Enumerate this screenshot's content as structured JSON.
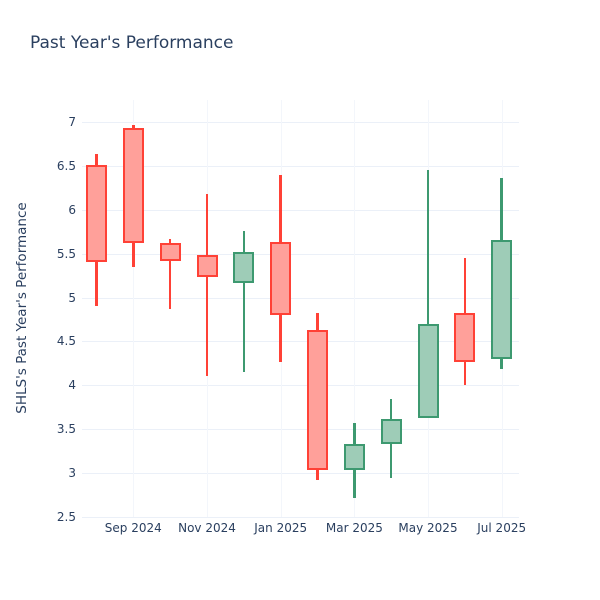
{
  "title": "Past Year's Performance",
  "colors": {
    "background": "#ffffff",
    "text": "#2a3f5f",
    "grid_horizontal": "#ebf0f8",
    "grid_vertical": "#f3f6fb",
    "increasing_line": "#3d9970",
    "increasing_fill": "#9eccb7",
    "decreasing_line": "#ff4136",
    "decreasing_fill": "#ffa09a"
  },
  "chart_data": {
    "type": "candlestick",
    "title": "Past Year's Performance",
    "xlabel": "",
    "ylabel": "SHLS's Past Year's Performance",
    "ylim": [
      2.5,
      7.25
    ],
    "grid": true,
    "legend": "none",
    "y_ticks": [
      2.5,
      3,
      3.5,
      4,
      4.5,
      5,
      5.5,
      6,
      6.5,
      7
    ],
    "x_tick_labels": [
      "Sep 2024",
      "Nov 2024",
      "Jan 2025",
      "Mar 2025",
      "May 2025",
      "Jul 2025"
    ],
    "candles": [
      {
        "month": "Aug 2024",
        "open": 6.51,
        "high": 6.64,
        "low": 4.9,
        "close": 5.41,
        "direction": "decreasing"
      },
      {
        "month": "Sep 2024",
        "open": 6.93,
        "high": 6.97,
        "low": 5.35,
        "close": 5.62,
        "direction": "decreasing"
      },
      {
        "month": "Oct 2024",
        "open": 5.62,
        "high": 5.67,
        "low": 4.87,
        "close": 5.42,
        "direction": "decreasing"
      },
      {
        "month": "Nov 2024",
        "open": 5.49,
        "high": 6.18,
        "low": 4.1,
        "close": 5.23,
        "direction": "decreasing"
      },
      {
        "month": "Dec 2024",
        "open": 5.17,
        "high": 5.76,
        "low": 4.15,
        "close": 5.52,
        "direction": "increasing"
      },
      {
        "month": "Jan 2025",
        "open": 5.63,
        "high": 6.4,
        "low": 4.26,
        "close": 4.8,
        "direction": "decreasing"
      },
      {
        "month": "Feb 2025",
        "open": 4.63,
        "high": 4.82,
        "low": 2.92,
        "close": 3.04,
        "direction": "decreasing"
      },
      {
        "month": "Mar 2025",
        "open": 3.04,
        "high": 3.57,
        "low": 2.72,
        "close": 3.33,
        "direction": "increasing"
      },
      {
        "month": "Apr 2025",
        "open": 3.33,
        "high": 3.85,
        "low": 2.94,
        "close": 3.62,
        "direction": "increasing"
      },
      {
        "month": "May 2025",
        "open": 3.63,
        "high": 6.45,
        "low": 3.63,
        "close": 4.7,
        "direction": "increasing"
      },
      {
        "month": "Jun 2025",
        "open": 4.82,
        "high": 5.45,
        "low": 4.0,
        "close": 4.27,
        "direction": "decreasing"
      },
      {
        "month": "Jul 2025",
        "open": 4.3,
        "high": 6.36,
        "low": 4.19,
        "close": 5.66,
        "direction": "increasing"
      }
    ]
  }
}
